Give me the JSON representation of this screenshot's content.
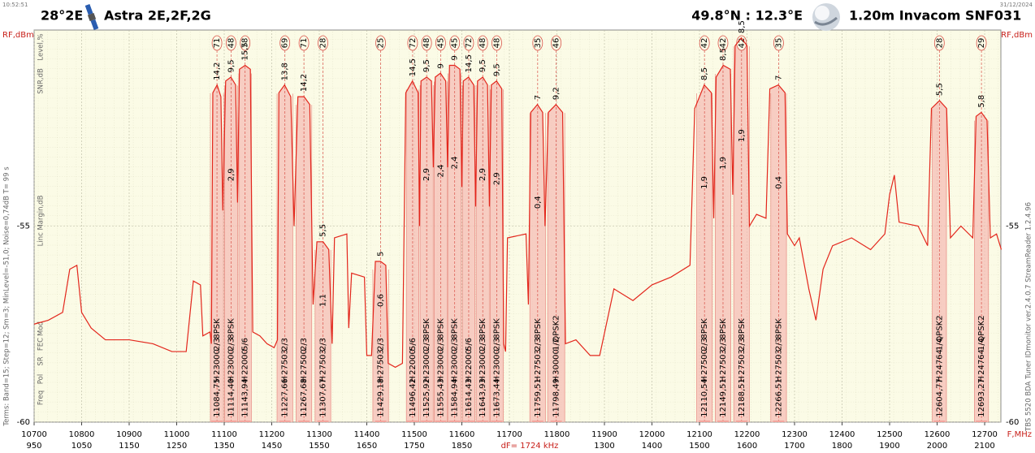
{
  "header": {
    "time": "10:52:51",
    "position": "28°2E",
    "satellite": "Astra 2E,2F,2G",
    "location": "49.8°N : 12.3°E",
    "dish": "1.20m  Invacom SNF031",
    "date": "31/12/2024"
  },
  "side_labels": {
    "level": "Level,%",
    "snr": "SNR,dB",
    "margin": "Linc Margin,dB",
    "mod": "Mod",
    "fec": "FEC",
    "sr": "SR",
    "pol": "Pol",
    "freq": "Freq",
    "terms": "Terms: Band=15; Step=12; Sm=3; MinLevel=-51,0; Noise=0,74dB  T= 99 s",
    "software": "TBS 5520 BDA Tuner   IDmonitor  ver.2.4.0.7  StreamReader 1.2.4.96"
  },
  "chart_data": {
    "type": "line",
    "y_label": "RF,dBm",
    "x_label": "F,MHz",
    "annotation": "dF= 1724 kHz",
    "xlim": [
      10700,
      12735
    ],
    "ylim": [
      -60,
      -50
    ],
    "xticks": [
      10700,
      10800,
      10900,
      11000,
      11100,
      11200,
      11300,
      11400,
      11500,
      11600,
      11700,
      11800,
      11900,
      12000,
      12100,
      12200,
      12300,
      12400,
      12500,
      12600,
      12700
    ],
    "if_labels": [
      950,
      1050,
      1150,
      1250,
      1350,
      1450,
      1550,
      1650,
      1750,
      1850,
      null,
      null,
      1300,
      1400,
      1500,
      1600,
      1700,
      1800,
      1900,
      2000,
      2100
    ],
    "yticks": [
      -60,
      -55
    ],
    "x": [
      10700,
      10730,
      10760,
      10775,
      10790,
      10800,
      10820,
      10850,
      10900,
      10950,
      10990,
      11020,
      11035,
      11050,
      11055,
      11070,
      11073,
      11076,
      11085,
      11093,
      11097,
      11103,
      11114,
      11124,
      11128,
      11132,
      11144,
      11155,
      11160,
      11175,
      11190,
      11205,
      11212,
      11215,
      11227,
      11240,
      11247,
      11255,
      11268,
      11280,
      11287,
      11295,
      11308,
      11320,
      11327,
      11332,
      11358,
      11362,
      11368,
      11395,
      11400,
      11410,
      11418,
      11429,
      11440,
      11445,
      11460,
      11475,
      11482,
      11496,
      11508,
      11511,
      11514,
      11526,
      11536,
      11540,
      11544,
      11555,
      11566,
      11570,
      11574,
      11585,
      11596,
      11600,
      11603,
      11614,
      11625,
      11629,
      11633,
      11644,
      11654,
      11658,
      11662,
      11673,
      11684,
      11688,
      11692,
      11696,
      11735,
      11740,
      11745,
      11759,
      11770,
      11775,
      11782,
      11798,
      11812,
      11818,
      11840,
      11870,
      11890,
      11920,
      11960,
      12000,
      12040,
      12080,
      12090,
      12110,
      12125,
      12130,
      12135,
      12150,
      12165,
      12170,
      12175,
      12188,
      12200,
      12205,
      12220,
      12240,
      12248,
      12266,
      12280,
      12285,
      12300,
      12310,
      12330,
      12345,
      12360,
      12380,
      12420,
      12460,
      12490,
      12500,
      12510,
      12520,
      12560,
      12580,
      12588,
      12605,
      12620,
      12628,
      12650,
      12675,
      12682,
      12693,
      12705,
      12712,
      12725,
      12735
    ],
    "series": [
      {
        "color": "#e3261c",
        "values": [
          -57.5,
          -57.4,
          -57.2,
          -56.1,
          -56.0,
          -57.2,
          -57.6,
          -57.9,
          -57.9,
          -58.0,
          -58.2,
          -58.2,
          -56.4,
          -56.5,
          -57.8,
          -57.7,
          -58.0,
          -51.6,
          -51.4,
          -51.7,
          -54.6,
          -51.3,
          -51.2,
          -51.4,
          -54.4,
          -51.0,
          -50.9,
          -51.0,
          -57.7,
          -57.8,
          -58.0,
          -58.1,
          -57.9,
          -51.6,
          -51.4,
          -51.7,
          -55.0,
          -51.7,
          -51.7,
          -51.9,
          -57.0,
          -55.4,
          -55.4,
          -55.6,
          -58.0,
          -55.3,
          -55.2,
          -57.6,
          -56.2,
          -56.3,
          -58.3,
          -58.3,
          -55.9,
          -55.9,
          -56.0,
          -58.5,
          -58.6,
          -58.5,
          -51.6,
          -51.3,
          -51.6,
          -55.0,
          -51.3,
          -51.2,
          -51.3,
          -53.5,
          -51.2,
          -51.1,
          -51.3,
          -53.5,
          -50.9,
          -50.9,
          -51.0,
          -54.0,
          -51.3,
          -51.2,
          -51.4,
          -54.5,
          -51.3,
          -51.2,
          -51.4,
          -54.5,
          -51.4,
          -51.3,
          -51.5,
          -58.0,
          -58.2,
          -55.3,
          -55.2,
          -57.0,
          -52.1,
          -51.9,
          -52.1,
          -55.0,
          -52.1,
          -51.9,
          -52.1,
          -58.0,
          -57.9,
          -58.3,
          -58.3,
          -56.6,
          -56.9,
          -56.5,
          -56.3,
          -56.0,
          -52.0,
          -51.4,
          -51.6,
          -54.8,
          -51.2,
          -50.9,
          -51.0,
          -54.2,
          -50.4,
          -50.2,
          -50.4,
          -55.0,
          -54.7,
          -54.8,
          -51.5,
          -51.4,
          -51.6,
          -55.2,
          -55.5,
          -55.3,
          -56.6,
          -57.4,
          -56.1,
          -55.5,
          -55.3,
          -55.6,
          -55.2,
          -54.2,
          -53.7,
          -54.9,
          -55.0,
          -55.5,
          -52.0,
          -51.8,
          -52.0,
          -55.3,
          -55.0,
          -55.3,
          -52.2,
          -52.1,
          -52.3,
          -55.3,
          -55.2,
          -55.6
        ]
      }
    ],
    "transponders": [
      {
        "frequency": {
          "value": 11084.75,
          "label": "11084,75"
        },
        "polarization": "H",
        "symbol_rate": 23000,
        "fec": "2/3",
        "modulation": "8PSK",
        "level": 71,
        "snr": "14,2"
      },
      {
        "frequency": {
          "value": 11114.4,
          "label": "11114,40"
        },
        "polarization": "H",
        "symbol_rate": 23000,
        "fec": "2/3",
        "modulation": "8PSK",
        "level": 48,
        "snr": "9,5",
        "margin": "2,9"
      },
      {
        "frequency": {
          "value": 11143.94,
          "label": "11143,94"
        },
        "polarization": "H",
        "symbol_rate": 22000,
        "fec": "5/6",
        "level": 78,
        "snr": "15,5"
      },
      {
        "frequency": {
          "value": 11227.66,
          "label": "11227,66"
        },
        "polarization": "H",
        "symbol_rate": 27503,
        "fec": "2/3",
        "level": 69,
        "snr": "13,8"
      },
      {
        "frequency": {
          "value": 11267.68,
          "label": "11267,68"
        },
        "polarization": "H",
        "symbol_rate": 27500,
        "fec": "2/3",
        "level": 71,
        "snr": "14,2"
      },
      {
        "frequency": {
          "value": 11307.67,
          "label": "11307,67"
        },
        "polarization": "H",
        "symbol_rate": 27503,
        "fec": "2/3",
        "level": 28,
        "snr": "5,5",
        "margin": "1,1"
      },
      {
        "frequency": {
          "value": 11429.18,
          "label": "11429,18"
        },
        "polarization": "H",
        "symbol_rate": 27503,
        "fec": "2/3",
        "level": 25,
        "snr": "5",
        "margin": "0,6"
      },
      {
        "frequency": {
          "value": 11496.42,
          "label": "11496,42"
        },
        "polarization": "H",
        "symbol_rate": 22000,
        "fec": "5/6",
        "level": 72,
        "snr": "14,5"
      },
      {
        "frequency": {
          "value": 11525.92,
          "label": "11525,92"
        },
        "polarization": "H",
        "symbol_rate": 23000,
        "fec": "2/3",
        "modulation": "8PSK",
        "level": 48,
        "snr": "9,5",
        "margin": "2,9"
      },
      {
        "frequency": {
          "value": 11555.43,
          "label": "11555,43"
        },
        "polarization": "H",
        "symbol_rate": 23000,
        "fec": "2/3",
        "modulation": "8PSK",
        "level": 45,
        "snr": "9",
        "margin": "2,4"
      },
      {
        "frequency": {
          "value": 11584.94,
          "label": "11584,94"
        },
        "polarization": "H",
        "symbol_rate": 23000,
        "fec": "2/3",
        "modulation": "8PSK",
        "level": 45,
        "snr": "9",
        "margin": "2,4"
      },
      {
        "frequency": {
          "value": 11614.43,
          "label": "11614,43"
        },
        "polarization": "H",
        "symbol_rate": 22000,
        "fec": "5/6",
        "level": 72,
        "snr": "14,5"
      },
      {
        "frequency": {
          "value": 11643.93,
          "label": "11643,93"
        },
        "polarization": "H",
        "symbol_rate": 23000,
        "fec": "2/3",
        "modulation": "8PSK",
        "level": 48,
        "snr": "9,5",
        "margin": "2,9"
      },
      {
        "frequency": {
          "value": 11673.44,
          "label": "11673,44"
        },
        "polarization": "H",
        "symbol_rate": 23000,
        "fec": "2/3",
        "modulation": "8PSK",
        "level": 48,
        "snr": "9,5",
        "margin": "2,9"
      },
      {
        "frequency": {
          "value": 11759.51,
          "label": "11759,51"
        },
        "polarization": "H",
        "symbol_rate": 27503,
        "fec": "2/3",
        "modulation": "8PSK",
        "level": 35,
        "snr": "7",
        "margin": "0,4"
      },
      {
        "frequency": {
          "value": 11798.49,
          "label": "11798,49"
        },
        "polarization": "H",
        "symbol_rate": 30000,
        "fec": "1/2",
        "modulation": "QPSK2",
        "level": 46,
        "snr": "9,2"
      },
      {
        "frequency": {
          "value": 12110.54,
          "label": "12110,54"
        },
        "polarization": "H",
        "symbol_rate": 27500,
        "fec": "2/3",
        "modulation": "8PSK",
        "level": 42,
        "snr": "8,5",
        "margin": "1,9"
      },
      {
        "frequency": {
          "value": 12149.51,
          "label": "12149,51"
        },
        "polarization": "H",
        "symbol_rate": 27503,
        "fec": "2/3",
        "modulation": "8PSK",
        "level": 42,
        "snr": "8,5",
        "margin": "1,9"
      },
      {
        "frequency": {
          "value": 12188.51,
          "label": "12188,51"
        },
        "polarization": "H",
        "symbol_rate": 27503,
        "fec": "2/3",
        "modulation": "8PSK",
        "level": 42,
        "snr": "8,5",
        "margin": "1,9"
      },
      {
        "frequency": {
          "value": 12266.51,
          "label": "12266,51"
        },
        "polarization": "H",
        "symbol_rate": 27503,
        "fec": "2/3",
        "modulation": "8PSK",
        "level": 35,
        "snr": "7",
        "margin": "0,4"
      },
      {
        "frequency": {
          "value": 12604.77,
          "label": "12604,77"
        },
        "polarization": "H",
        "symbol_rate": 24764,
        "fec": "1/4",
        "modulation": "QPSK2",
        "level": 28,
        "snr": "5,5"
      },
      {
        "frequency": {
          "value": 12693.27,
          "label": "12693,27"
        },
        "polarization": "H",
        "symbol_rate": 24764,
        "fec": "1/4",
        "modulation": "QPSK2",
        "level": 29,
        "snr": "5,8"
      }
    ]
  }
}
